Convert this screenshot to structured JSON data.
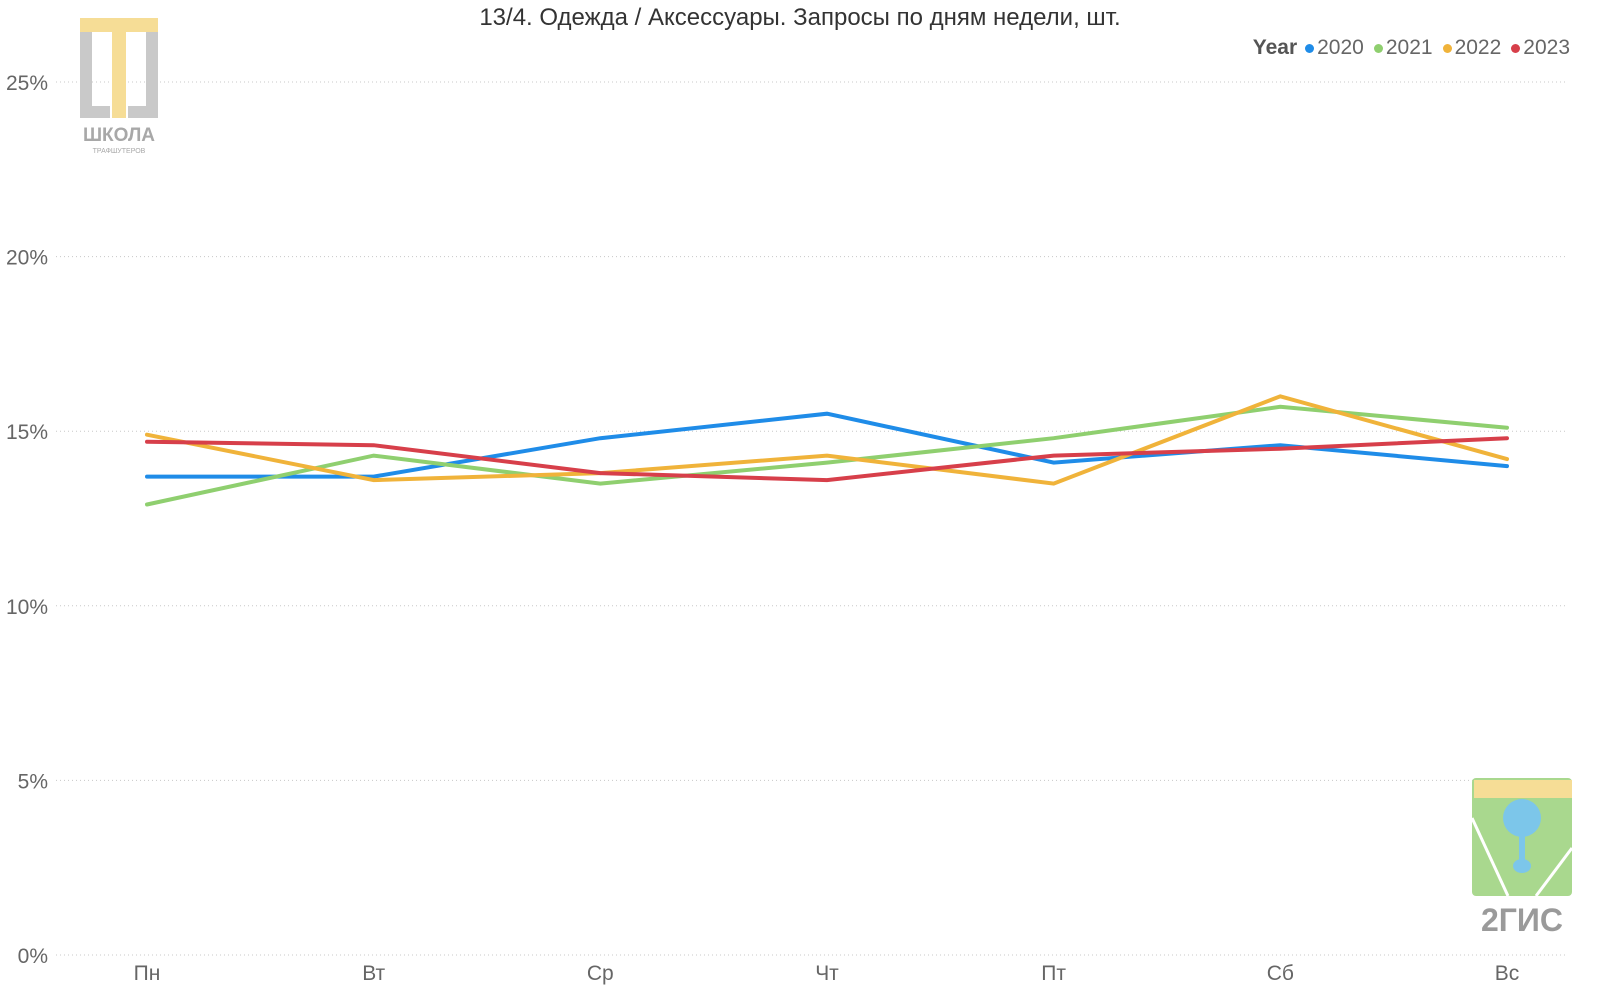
{
  "chart_data": {
    "type": "line",
    "title": "13/4. Одежда / Аксессуары. Запросы по дням недели, шт.",
    "xlabel": "",
    "ylabel": "",
    "categories": [
      "Пн",
      "Вт",
      "Ср",
      "Чт",
      "Пт",
      "Сб",
      "Вс"
    ],
    "ylim": [
      0,
      25
    ],
    "yticks": [
      0,
      5,
      10,
      15,
      20,
      25
    ],
    "ytick_labels": [
      "0%",
      "5%",
      "10%",
      "15%",
      "20%",
      "25%"
    ],
    "grid": true,
    "legend_title": "Year",
    "legend_position": "top-right",
    "series": [
      {
        "name": "2020",
        "color": "#1f8ce8",
        "values": [
          13.7,
          13.7,
          14.8,
          15.5,
          14.1,
          14.6,
          14.0
        ]
      },
      {
        "name": "2021",
        "color": "#8fcf6f",
        "values": [
          12.9,
          14.3,
          13.5,
          14.1,
          14.8,
          15.7,
          15.1
        ]
      },
      {
        "name": "2022",
        "color": "#f0b33a",
        "values": [
          14.9,
          13.6,
          13.8,
          14.3,
          13.5,
          16.0,
          14.2
        ]
      },
      {
        "name": "2023",
        "color": "#d73f4a",
        "values": [
          14.7,
          14.6,
          13.8,
          13.6,
          14.3,
          14.5,
          14.8
        ]
      }
    ]
  },
  "logos": {
    "top_left": {
      "text": "ШКОЛА",
      "subtext": "ТРАФШУТЕРОВ"
    },
    "bottom_right": {
      "text": "2ГИС"
    }
  }
}
